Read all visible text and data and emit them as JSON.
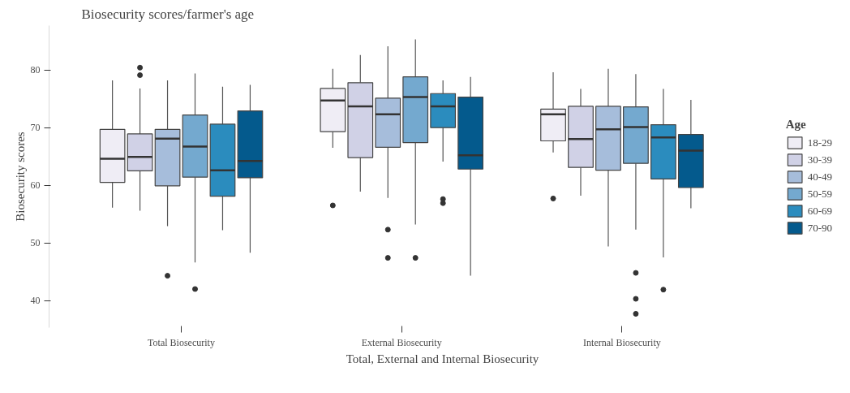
{
  "chart_data": {
    "type": "box",
    "title": "Biosecurity scores/farmer's age",
    "xlabel": "Total, External and Internal Biosecurity",
    "ylabel": "Biosecurity scores",
    "legend_title": "Age",
    "legend": "right",
    "categories": [
      "Total Biosecurity",
      "External Biosecurity",
      "Internal Biosecurity"
    ],
    "ylim": [
      35.3,
      87.7
    ],
    "yticks": [
      40,
      50,
      60,
      70,
      80
    ],
    "series": [
      {
        "name": "18-29",
        "color": "#efedf5",
        "boxes": [
          {
            "low": 56.1,
            "q1": 60.5,
            "median": 64.6,
            "q3": 69.7,
            "high": 78.2
          },
          {
            "low": 66.5,
            "q1": 69.3,
            "median": 74.7,
            "q3": 76.8,
            "high": 80.2,
            "outliers": [
              56.5
            ]
          },
          {
            "low": 65.7,
            "q1": 67.7,
            "median": 72.3,
            "q3": 73.2,
            "high": 79.6,
            "outliers": [
              57.7
            ]
          }
        ]
      },
      {
        "name": "30-39",
        "color": "#d0d1e6",
        "boxes": [
          {
            "low": 55.6,
            "q1": 62.5,
            "median": 64.9,
            "q3": 68.9,
            "high": 76.8,
            "outliers": [
              80.4,
              79.1
            ]
          },
          {
            "low": 58.9,
            "q1": 64.8,
            "median": 73.7,
            "q3": 77.8,
            "high": 82.6
          },
          {
            "low": 58.2,
            "q1": 63.1,
            "median": 68.0,
            "q3": 73.7,
            "high": 76.7
          }
        ]
      },
      {
        "name": "40-49",
        "color": "#a6bddb",
        "boxes": [
          {
            "low": 52.9,
            "q1": 59.9,
            "median": 68.1,
            "q3": 69.7,
            "high": 78.2,
            "outliers": [
              44.3
            ]
          },
          {
            "low": 57.8,
            "q1": 66.6,
            "median": 72.3,
            "q3": 75.1,
            "high": 84.1,
            "outliers": [
              52.3,
              47.4
            ]
          },
          {
            "low": 49.4,
            "q1": 62.6,
            "median": 69.7,
            "q3": 73.7,
            "high": 80.2
          }
        ]
      },
      {
        "name": "50-59",
        "color": "#74a9cf",
        "boxes": [
          {
            "low": 46.6,
            "q1": 61.4,
            "median": 66.7,
            "q3": 72.2,
            "high": 79.4,
            "outliers": [
              42.0
            ]
          },
          {
            "low": 53.2,
            "q1": 67.4,
            "median": 75.3,
            "q3": 78.8,
            "high": 85.3,
            "outliers": [
              47.4
            ]
          },
          {
            "low": 52.3,
            "q1": 63.8,
            "median": 70.1,
            "q3": 73.6,
            "high": 79.3,
            "outliers": [
              44.8,
              40.3,
              37.7
            ]
          }
        ]
      },
      {
        "name": "60-69",
        "color": "#2b8cbe",
        "boxes": [
          {
            "low": 52.2,
            "q1": 58.1,
            "median": 62.6,
            "q3": 70.6,
            "high": 77.1
          },
          {
            "low": 64.1,
            "q1": 70.0,
            "median": 73.7,
            "q3": 75.9,
            "high": 78.2,
            "outliers": [
              57.6,
              56.9
            ]
          },
          {
            "low": 47.5,
            "q1": 61.1,
            "median": 68.3,
            "q3": 70.5,
            "high": 76.7,
            "outliers": [
              41.9
            ]
          }
        ]
      },
      {
        "name": "70-90",
        "color": "#045a8d",
        "boxes": [
          {
            "low": 48.3,
            "q1": 61.3,
            "median": 64.2,
            "q3": 72.9,
            "high": 77.4
          },
          {
            "low": 44.3,
            "q1": 62.8,
            "median": 65.2,
            "q3": 75.3,
            "high": 78.8
          },
          {
            "low": 56.0,
            "q1": 59.6,
            "median": 66.0,
            "q3": 68.8,
            "high": 74.8
          }
        ]
      }
    ]
  }
}
